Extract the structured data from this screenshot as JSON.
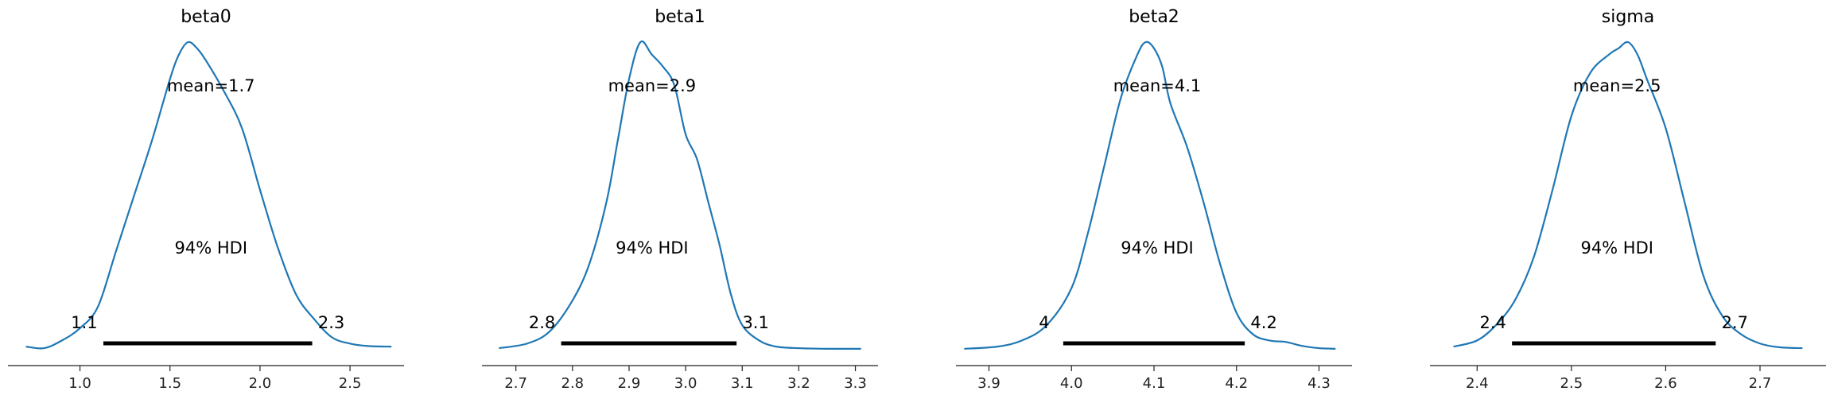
{
  "chart_data": [
    {
      "type": "area",
      "title": "beta0",
      "xlim": [
        0.6,
        2.8
      ],
      "ticks": [
        1.0,
        1.5,
        2.0,
        2.5
      ],
      "tick_labels": [
        "1.0",
        "1.5",
        "2.0",
        "2.5"
      ],
      "mean_label": "mean=1.7",
      "hdi_label": "94% HDI",
      "hdi": [
        1.13,
        2.29
      ],
      "hdi_low_label": "1.1",
      "hdi_high_label": "2.3",
      "line_color": "#1f77b4",
      "density": {
        "x": [
          0.7,
          0.8,
          0.9,
          1.0,
          1.1,
          1.2,
          1.3,
          1.4,
          1.5,
          1.55,
          1.6,
          1.65,
          1.7,
          1.8,
          1.9,
          2.0,
          2.1,
          2.2,
          2.3,
          2.4,
          2.5,
          2.6,
          2.73
        ],
        "y": [
          0.01,
          0.005,
          0.03,
          0.07,
          0.14,
          0.32,
          0.5,
          0.68,
          0.88,
          0.96,
          1.0,
          0.98,
          0.94,
          0.84,
          0.72,
          0.52,
          0.33,
          0.18,
          0.1,
          0.04,
          0.02,
          0.012,
          0.01
        ]
      }
    },
    {
      "type": "area",
      "title": "beta1",
      "xlim": [
        2.64,
        3.34
      ],
      "ticks": [
        2.7,
        2.8,
        2.9,
        3.0,
        3.1,
        3.2,
        3.3
      ],
      "tick_labels": [
        "2.7",
        "2.8",
        "2.9",
        "3.0",
        "3.1",
        "3.2",
        "3.3"
      ],
      "mean_label": "mean=2.9",
      "hdi_label": "94% HDI",
      "hdi": [
        2.78,
        3.09
      ],
      "hdi_low_label": "2.8",
      "hdi_high_label": "3.1",
      "line_color": "#1f77b4",
      "density": {
        "x": [
          2.67,
          2.72,
          2.76,
          2.8,
          2.83,
          2.86,
          2.88,
          2.9,
          2.92,
          2.94,
          2.96,
          2.98,
          3.0,
          3.02,
          3.04,
          3.06,
          3.08,
          3.1,
          3.13,
          3.16,
          3.2,
          3.25,
          3.31
        ],
        "y": [
          0.005,
          0.02,
          0.06,
          0.16,
          0.28,
          0.48,
          0.68,
          0.88,
          1.0,
          0.96,
          0.92,
          0.86,
          0.7,
          0.62,
          0.48,
          0.34,
          0.18,
          0.08,
          0.03,
          0.01,
          0.005,
          0.003,
          0.003
        ]
      }
    },
    {
      "type": "area",
      "title": "beta2",
      "xlim": [
        3.86,
        4.34
      ],
      "ticks": [
        3.9,
        4.0,
        4.1,
        4.2,
        4.3
      ],
      "tick_labels": [
        "3.9",
        "4.0",
        "4.1",
        "4.2",
        "4.3"
      ],
      "mean_label": "mean=4.1",
      "hdi_label": "94% HDI",
      "hdi": [
        3.99,
        4.21
      ],
      "hdi_low_label": "4",
      "hdi_high_label": "4.2",
      "line_color": "#1f77b4",
      "density": {
        "x": [
          3.87,
          3.91,
          3.94,
          3.97,
          4.0,
          4.02,
          4.04,
          4.06,
          4.08,
          4.09,
          4.1,
          4.11,
          4.12,
          4.14,
          4.16,
          4.18,
          4.2,
          4.22,
          4.24,
          4.26,
          4.28,
          4.3,
          4.32
        ],
        "y": [
          0.003,
          0.01,
          0.03,
          0.08,
          0.2,
          0.38,
          0.6,
          0.82,
          0.96,
          1.0,
          0.98,
          0.92,
          0.8,
          0.66,
          0.48,
          0.28,
          0.12,
          0.05,
          0.03,
          0.025,
          0.012,
          0.005,
          0.003
        ]
      }
    },
    {
      "type": "area",
      "title": "sigma",
      "xlim": [
        2.35,
        2.77
      ],
      "ticks": [
        2.4,
        2.5,
        2.6,
        2.7
      ],
      "tick_labels": [
        "2.4",
        "2.5",
        "2.6",
        "2.7"
      ],
      "mean_label": "mean=2.5",
      "hdi_label": "94% HDI",
      "hdi": [
        2.437,
        2.653
      ],
      "hdi_low_label": "2.4",
      "hdi_high_label": "2.7",
      "line_color": "#1f77b4",
      "density": {
        "x": [
          2.375,
          2.4,
          2.42,
          2.44,
          2.46,
          2.48,
          2.5,
          2.52,
          2.54,
          2.55,
          2.56,
          2.57,
          2.58,
          2.6,
          2.62,
          2.64,
          2.66,
          2.68,
          2.7,
          2.72,
          2.745
        ],
        "y": [
          0.01,
          0.03,
          0.08,
          0.16,
          0.3,
          0.52,
          0.76,
          0.9,
          0.96,
          0.98,
          1.0,
          0.96,
          0.88,
          0.72,
          0.48,
          0.24,
          0.11,
          0.05,
          0.02,
          0.008,
          0.005
        ]
      }
    }
  ]
}
